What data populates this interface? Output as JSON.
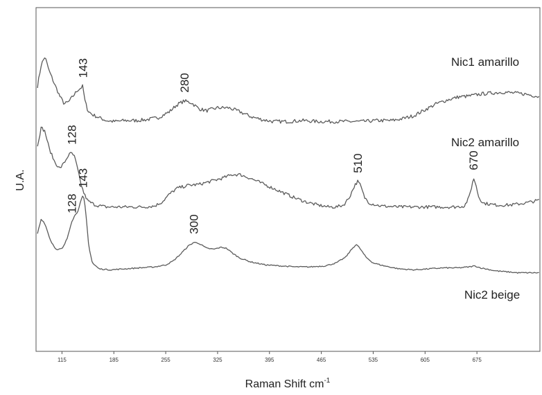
{
  "chart_data": {
    "type": "line",
    "xlabel": "Raman Shift cm",
    "xlabel_sup": "-1",
    "ylabel": "U.A.",
    "xlim": [
      80,
      760
    ],
    "ylim": [
      0,
      3.5
    ],
    "x_ticks": [
      115,
      185,
      255,
      325,
      395,
      465,
      535,
      605,
      675
    ],
    "grid": false,
    "legend": "labels beside traces",
    "colors": {
      "trace": "#5a5a5a",
      "frame": "#555555"
    },
    "series": [
      {
        "name": "Nic1 amarillo",
        "points": [
          [
            82,
            2.7
          ],
          [
            87,
            2.92
          ],
          [
            92,
            3.0
          ],
          [
            98,
            2.85
          ],
          [
            105,
            2.72
          ],
          [
            112,
            2.6
          ],
          [
            118,
            2.52
          ],
          [
            124,
            2.54
          ],
          [
            130,
            2.6
          ],
          [
            136,
            2.66
          ],
          [
            140,
            2.68
          ],
          [
            143,
            2.7
          ],
          [
            146,
            2.55
          ],
          [
            150,
            2.45
          ],
          [
            156,
            2.41
          ],
          [
            165,
            2.38
          ],
          [
            175,
            2.35
          ],
          [
            185,
            2.34
          ],
          [
            200,
            2.35
          ],
          [
            215,
            2.35
          ],
          [
            230,
            2.36
          ],
          [
            245,
            2.38
          ],
          [
            260,
            2.44
          ],
          [
            270,
            2.51
          ],
          [
            280,
            2.55
          ],
          [
            290,
            2.53
          ],
          [
            300,
            2.47
          ],
          [
            310,
            2.45
          ],
          [
            325,
            2.48
          ],
          [
            340,
            2.48
          ],
          [
            355,
            2.44
          ],
          [
            370,
            2.39
          ],
          [
            385,
            2.36
          ],
          [
            400,
            2.34
          ],
          [
            420,
            2.34
          ],
          [
            440,
            2.35
          ],
          [
            460,
            2.34
          ],
          [
            480,
            2.34
          ],
          [
            500,
            2.34
          ],
          [
            520,
            2.34
          ],
          [
            540,
            2.35
          ],
          [
            560,
            2.35
          ],
          [
            575,
            2.37
          ],
          [
            590,
            2.4
          ],
          [
            605,
            2.46
          ],
          [
            620,
            2.52
          ],
          [
            635,
            2.56
          ],
          [
            650,
            2.59
          ],
          [
            665,
            2.6
          ],
          [
            680,
            2.62
          ],
          [
            695,
            2.63
          ],
          [
            710,
            2.64
          ],
          [
            725,
            2.63
          ],
          [
            740,
            2.62
          ],
          [
            755,
            2.6
          ],
          [
            760,
            2.59
          ]
        ]
      },
      {
        "name": "Nic2 amarillo",
        "points": [
          [
            82,
            2.1
          ],
          [
            87,
            2.28
          ],
          [
            92,
            2.24
          ],
          [
            98,
            2.06
          ],
          [
            105,
            1.93
          ],
          [
            112,
            1.86
          ],
          [
            118,
            1.92
          ],
          [
            124,
            2.0
          ],
          [
            128,
            2.02
          ],
          [
            132,
            1.98
          ],
          [
            136,
            1.86
          ],
          [
            140,
            1.72
          ],
          [
            145,
            1.6
          ],
          [
            150,
            1.53
          ],
          [
            160,
            1.49
          ],
          [
            175,
            1.47
          ],
          [
            200,
            1.47
          ],
          [
            225,
            1.47
          ],
          [
            240,
            1.48
          ],
          [
            250,
            1.52
          ],
          [
            260,
            1.6
          ],
          [
            270,
            1.66
          ],
          [
            285,
            1.69
          ],
          [
            300,
            1.7
          ],
          [
            315,
            1.73
          ],
          [
            330,
            1.76
          ],
          [
            345,
            1.8
          ],
          [
            355,
            1.8
          ],
          [
            370,
            1.76
          ],
          [
            385,
            1.71
          ],
          [
            400,
            1.66
          ],
          [
            415,
            1.61
          ],
          [
            430,
            1.56
          ],
          [
            445,
            1.52
          ],
          [
            460,
            1.49
          ],
          [
            475,
            1.47
          ],
          [
            485,
            1.47
          ],
          [
            495,
            1.49
          ],
          [
            503,
            1.57
          ],
          [
            510,
            1.69
          ],
          [
            514,
            1.73
          ],
          [
            518,
            1.69
          ],
          [
            523,
            1.57
          ],
          [
            530,
            1.51
          ],
          [
            545,
            1.48
          ],
          [
            570,
            1.47
          ],
          [
            595,
            1.47
          ],
          [
            620,
            1.47
          ],
          [
            645,
            1.47
          ],
          [
            658,
            1.48
          ],
          [
            664,
            1.56
          ],
          [
            668,
            1.68
          ],
          [
            670,
            1.76
          ],
          [
            673,
            1.72
          ],
          [
            677,
            1.58
          ],
          [
            683,
            1.51
          ],
          [
            700,
            1.49
          ],
          [
            720,
            1.49
          ],
          [
            740,
            1.51
          ],
          [
            760,
            1.54
          ]
        ]
      },
      {
        "name": "Nic2 beige",
        "points": [
          [
            82,
            1.2
          ],
          [
            87,
            1.35
          ],
          [
            92,
            1.3
          ],
          [
            100,
            1.12
          ],
          [
            108,
            1.03
          ],
          [
            116,
            1.05
          ],
          [
            122,
            1.15
          ],
          [
            128,
            1.32
          ],
          [
            132,
            1.38
          ],
          [
            136,
            1.42
          ],
          [
            140,
            1.52
          ],
          [
            143,
            1.58
          ],
          [
            145,
            1.55
          ],
          [
            148,
            1.34
          ],
          [
            151,
            1.08
          ],
          [
            156,
            0.9
          ],
          [
            165,
            0.84
          ],
          [
            180,
            0.83
          ],
          [
            200,
            0.84
          ],
          [
            220,
            0.85
          ],
          [
            240,
            0.86
          ],
          [
            255,
            0.88
          ],
          [
            265,
            0.92
          ],
          [
            275,
            0.99
          ],
          [
            285,
            1.07
          ],
          [
            293,
            1.11
          ],
          [
            300,
            1.1
          ],
          [
            310,
            1.05
          ],
          [
            320,
            1.04
          ],
          [
            330,
            1.06
          ],
          [
            337,
            1.05
          ],
          [
            345,
            1.0
          ],
          [
            355,
            0.95
          ],
          [
            370,
            0.91
          ],
          [
            390,
            0.88
          ],
          [
            410,
            0.87
          ],
          [
            430,
            0.86
          ],
          [
            450,
            0.86
          ],
          [
            470,
            0.87
          ],
          [
            485,
            0.9
          ],
          [
            498,
            0.96
          ],
          [
            506,
            1.04
          ],
          [
            512,
            1.09
          ],
          [
            517,
            1.05
          ],
          [
            525,
            0.96
          ],
          [
            535,
            0.9
          ],
          [
            550,
            0.87
          ],
          [
            570,
            0.84
          ],
          [
            590,
            0.83
          ],
          [
            610,
            0.84
          ],
          [
            630,
            0.85
          ],
          [
            650,
            0.85
          ],
          [
            665,
            0.86
          ],
          [
            672,
            0.87
          ],
          [
            680,
            0.85
          ],
          [
            700,
            0.82
          ],
          [
            730,
            0.8
          ],
          [
            760,
            0.8
          ]
        ]
      }
    ],
    "annotations": [
      {
        "text": "143",
        "series": 0,
        "x": 143
      },
      {
        "text": "280",
        "series": 0,
        "x": 280
      },
      {
        "text": "128",
        "series": 1,
        "x": 128
      },
      {
        "text": "510",
        "series": 1,
        "x": 514
      },
      {
        "text": "670",
        "series": 1,
        "x": 670
      },
      {
        "text": "128",
        "series": 2,
        "x": 128
      },
      {
        "text": "143",
        "series": 2,
        "x": 143
      },
      {
        "text": "300",
        "series": 2,
        "x": 293
      }
    ]
  }
}
